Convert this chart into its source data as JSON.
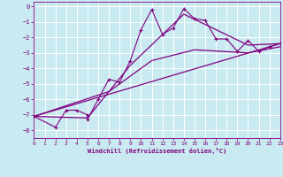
{
  "title": "",
  "xlabel": "Windchill (Refroidissement éolien,°C)",
  "bg_color": "#c8eaf0",
  "line_color": "#800080",
  "grid_color": "#ffffff",
  "xlim": [
    0,
    23
  ],
  "ylim": [
    -8.5,
    0.3
  ],
  "xticks": [
    0,
    1,
    2,
    3,
    4,
    5,
    6,
    7,
    8,
    9,
    10,
    11,
    12,
    13,
    14,
    15,
    16,
    17,
    18,
    19,
    20,
    21,
    22,
    23
  ],
  "yticks": [
    0,
    -1,
    -2,
    -3,
    -4,
    -5,
    -6,
    -7,
    -8
  ],
  "line1_x": [
    0,
    2,
    3,
    4,
    5,
    5,
    6,
    7,
    8,
    9,
    10,
    11,
    12,
    13,
    14,
    15,
    16,
    17,
    18,
    19,
    20,
    21,
    22,
    23
  ],
  "line1_y": [
    -7.1,
    -7.8,
    -6.7,
    -6.7,
    -7.0,
    -7.3,
    -6.0,
    -4.7,
    -4.9,
    -3.5,
    -1.5,
    -0.2,
    -1.8,
    -1.4,
    -0.15,
    -0.8,
    -0.9,
    -2.1,
    -2.1,
    -2.9,
    -2.2,
    -2.9,
    -2.6,
    -2.4
  ],
  "line2_x": [
    0,
    23
  ],
  "line2_y": [
    -7.1,
    -2.4
  ],
  "line3_x": [
    0,
    7,
    11,
    15,
    20,
    23
  ],
  "line3_y": [
    -7.1,
    -5.5,
    -3.5,
    -2.8,
    -3.0,
    -2.6
  ],
  "line4_x": [
    0,
    5,
    9,
    14,
    20,
    23
  ],
  "line4_y": [
    -7.1,
    -7.2,
    -3.8,
    -0.5,
    -2.5,
    -2.4
  ]
}
